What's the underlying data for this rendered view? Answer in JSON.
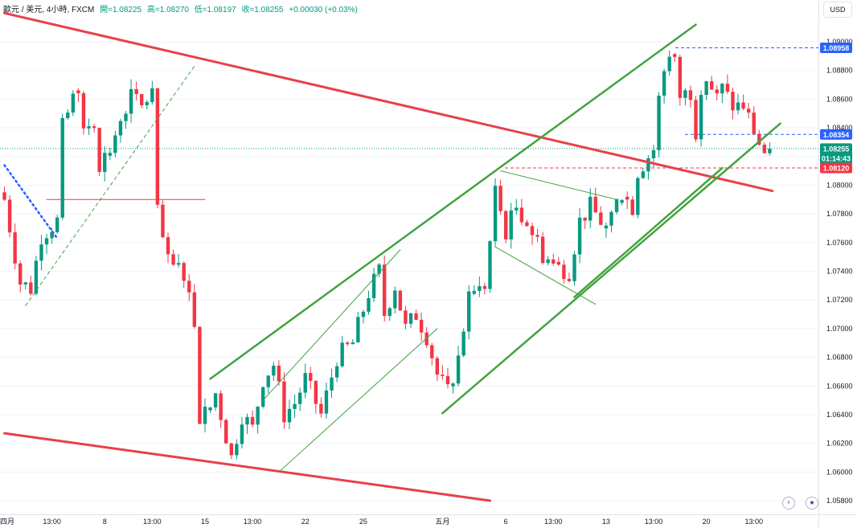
{
  "legend": {
    "symbol": "歐元 / 美元, 4小時, FXCM",
    "open_label": "開=1.08225",
    "high_label": "高=1.08270",
    "low_label": "低=1.08197",
    "close_label": "收=1.08255",
    "change_label": "+0.00030 (+0.03%)"
  },
  "currency_button": "USD",
  "colors": {
    "up": "#089981",
    "down": "#f23645",
    "green_line": "#43a33f",
    "red_line": "#e8404b",
    "blue_badge": "#2962ff"
  },
  "badges": {
    "high": "1.08958",
    "mid": "1.08354",
    "last": "1.08255",
    "countdown": "01:14:43",
    "support": "1.08120"
  },
  "icons": {
    "flag_eu": "eu-flag-icon",
    "flag_us": "us-flag-icon",
    "lightning": "lightning-icon"
  },
  "chart_data": {
    "type": "candlestick",
    "y_axis": {
      "min": 1.0575,
      "max": 1.0915,
      "ticks": [
        "1.05800",
        "1.06000",
        "1.06200",
        "1.06400",
        "1.06600",
        "1.06800",
        "1.07000",
        "1.07200",
        "1.07400",
        "1.07600",
        "1.07800",
        "1.08000",
        "1.08200",
        "1.08400",
        "1.08600",
        "1.08800",
        "1.09000"
      ]
    },
    "x_axis": {
      "n_bars": 146,
      "ticks": [
        {
          "label": "四月",
          "bar": 0
        },
        {
          "label": "13:00",
          "bar": 9
        },
        {
          "label": "8",
          "bar": 19
        },
        {
          "label": "13:00",
          "bar": 28
        },
        {
          "label": "15",
          "bar": 38
        },
        {
          "label": "13:00",
          "bar": 47
        },
        {
          "label": "22",
          "bar": 57
        },
        {
          "label": "25",
          "bar": 68
        },
        {
          "label": "五月",
          "bar": 83
        },
        {
          "label": "6",
          "bar": 95
        },
        {
          "label": "13:00",
          "bar": 104
        },
        {
          "label": "13",
          "bar": 114
        },
        {
          "label": "13:00",
          "bar": 123
        },
        {
          "label": "20",
          "bar": 133
        },
        {
          "label": "13:00",
          "bar": 142
        }
      ]
    },
    "anchors": [
      [
        0,
        1.079
      ],
      [
        3,
        1.0732
      ],
      [
        5,
        1.0728
      ],
      [
        7,
        1.0765
      ],
      [
        10,
        1.0775
      ],
      [
        11,
        1.084
      ],
      [
        14,
        1.087
      ],
      [
        15,
        1.084
      ],
      [
        17,
        1.0845
      ],
      [
        18,
        1.0815
      ],
      [
        21,
        1.083
      ],
      [
        22,
        1.0848
      ],
      [
        24,
        1.0862
      ],
      [
        26,
        1.0855
      ],
      [
        28,
        1.0865
      ],
      [
        29,
        1.078
      ],
      [
        31,
        1.0745
      ],
      [
        34,
        1.074
      ],
      [
        36,
        1.0705
      ],
      [
        37,
        1.064
      ],
      [
        40,
        1.0655
      ],
      [
        42,
        1.0625
      ],
      [
        43,
        1.061
      ],
      [
        45,
        1.064
      ],
      [
        47,
        1.063
      ],
      [
        49,
        1.0665
      ],
      [
        51,
        1.0675
      ],
      [
        53,
        1.064
      ],
      [
        55,
        1.0648
      ],
      [
        57,
        1.0665
      ],
      [
        60,
        1.064
      ],
      [
        63,
        1.068
      ],
      [
        66,
        1.069
      ],
      [
        69,
        1.0725
      ],
      [
        71,
        1.074
      ],
      [
        72,
        1.071
      ],
      [
        74,
        1.073
      ],
      [
        76,
        1.07
      ],
      [
        78,
        1.071
      ],
      [
        80,
        1.0695
      ],
      [
        82,
        1.0668
      ],
      [
        84,
        1.0655
      ],
      [
        86,
        1.068
      ],
      [
        88,
        1.072
      ],
      [
        91,
        1.073
      ],
      [
        92,
        1.076
      ],
      [
        93,
        1.0795
      ],
      [
        95,
        1.0768
      ],
      [
        97,
        1.0785
      ],
      [
        99,
        1.0775
      ],
      [
        102,
        1.0752
      ],
      [
        104,
        1.0745
      ],
      [
        107,
        1.074
      ],
      [
        109,
        1.0775
      ],
      [
        111,
        1.0785
      ],
      [
        114,
        1.077
      ],
      [
        115,
        1.078
      ],
      [
        117,
        1.0795
      ],
      [
        119,
        1.0785
      ],
      [
        120,
        1.081
      ],
      [
        122,
        1.082
      ],
      [
        123,
        1.0825
      ],
      [
        124,
        1.086
      ],
      [
        125,
        1.088
      ],
      [
        126,
        1.0893
      ],
      [
        127,
        1.089
      ],
      [
        128,
        1.0862
      ],
      [
        130,
        1.0865
      ],
      [
        131,
        1.0838
      ],
      [
        132,
        1.087
      ],
      [
        133,
        1.0875
      ],
      [
        135,
        1.086
      ],
      [
        136,
        1.0867
      ],
      [
        138,
        1.0855
      ],
      [
        140,
        1.0855
      ],
      [
        142,
        1.0838
      ],
      [
        143,
        1.0829
      ],
      [
        144,
        1.0822
      ],
      [
        145,
        1.0826
      ]
    ],
    "last_price": 1.08255,
    "levels": [
      {
        "name": "high",
        "price": 1.08958,
        "color": "#2962ff",
        "style": "dashed"
      },
      {
        "name": "mid",
        "price": 1.08354,
        "color": "#2962ff",
        "style": "dashed"
      },
      {
        "name": "last",
        "price": 1.08255,
        "color": "#089981",
        "style": "dotted"
      },
      {
        "name": "support",
        "price": 1.0812,
        "color": "#f23645",
        "style": "dashed"
      }
    ],
    "trendlines": [
      {
        "name": "upper-red-line",
        "color": "#e8404b",
        "width": 3,
        "p1": [
          0,
          1.092
        ],
        "p2": [
          145.5,
          1.0796
        ]
      },
      {
        "name": "lower-red-line",
        "color": "#e8404b",
        "width": 3,
        "p1": [
          0,
          1.0627
        ],
        "p2": [
          92,
          1.058
        ]
      },
      {
        "name": "channel-upper-green",
        "color": "#43a33f",
        "width": 2.5,
        "p1": [
          39,
          1.0665
        ],
        "p2": [
          131,
          1.0912
        ]
      },
      {
        "name": "channel-lower-green",
        "color": "#43a33f",
        "width": 2.5,
        "p1": [
          83,
          1.0641
        ],
        "p2": [
          147,
          1.0843
        ]
      },
      {
        "name": "channel-lower-green-2",
        "color": "#43a33f",
        "width": 2.5,
        "p1": [
          108,
          1.0722
        ],
        "p2": [
          136,
          1.0812
        ]
      },
      {
        "name": "thin-green-upper-1",
        "color": "#43a33f",
        "width": 1,
        "p1": [
          49,
          1.065
        ],
        "p2": [
          75,
          1.0755
        ]
      },
      {
        "name": "thin-green-lower-1",
        "color": "#43a33f",
        "width": 1,
        "p1": [
          52,
          1.06
        ],
        "p2": [
          82,
          1.07
        ]
      },
      {
        "name": "thin-green-upper-2",
        "color": "#43a33f",
        "width": 1,
        "p1": [
          94,
          1.081
        ],
        "p2": [
          116,
          1.079
        ]
      },
      {
        "name": "thin-green-lower-2",
        "color": "#43a33f",
        "width": 1,
        "p1": [
          93,
          1.0757
        ],
        "p2": [
          112,
          1.0717
        ]
      },
      {
        "name": "dashed-green-line",
        "color": "#43a33f",
        "width": 1,
        "dash": "4,4",
        "p1": [
          4,
          1.0716
        ],
        "p2": [
          36,
          1.0883
        ]
      },
      {
        "name": "dotted-blue-line",
        "color": "#2962ff",
        "width": 2.5,
        "dash": "2,4",
        "p1": [
          0,
          1.0814
        ],
        "p2": [
          10,
          1.0763
        ]
      },
      {
        "name": "red-horizontal-line",
        "color": "#f23645",
        "width": 1,
        "p1": [
          8,
          1.079
        ],
        "p2": [
          38,
          1.079
        ]
      }
    ]
  }
}
